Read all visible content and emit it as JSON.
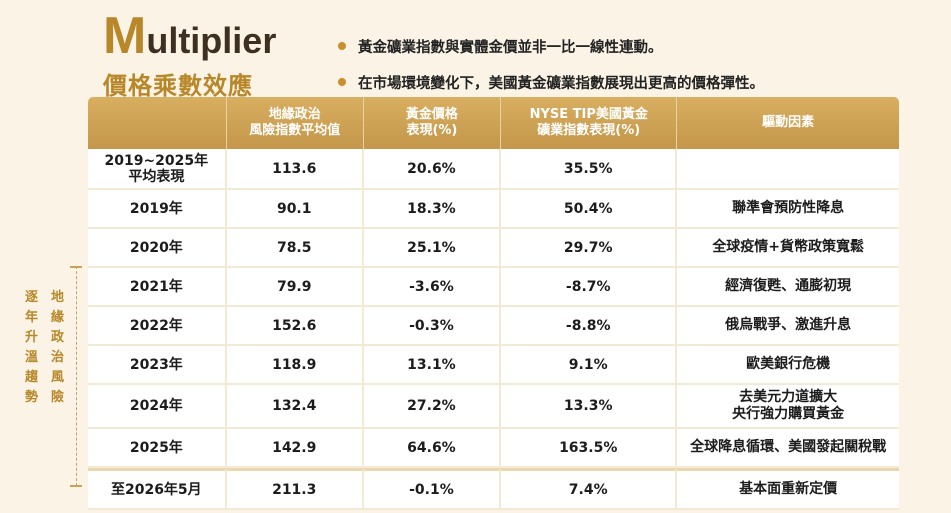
{
  "title": {
    "big_letter": "M",
    "rest": "ultiplier",
    "subtitle": "價格乘數效應"
  },
  "bullets": [
    "黃金礦業指數與實體金價並非一比一線性連動。",
    "在市場環境變化下，美國黃金礦業指數展現出更高的價格彈性。"
  ],
  "side_label": {
    "col1": [
      "逐",
      "年",
      "升",
      "溫",
      "趨",
      "勢"
    ],
    "col2": [
      "地",
      "緣",
      "政",
      "治",
      "風",
      "險"
    ]
  },
  "table": {
    "headers": [
      "",
      "地緣政治\n風險指數平均值",
      "黃金價格\n表現(%)",
      "NYSE TIP美國黃金\n礦業指數表現(%)",
      "驅動因素"
    ],
    "rows": [
      [
        "2019~2025年\n平均表現",
        "113.6",
        "20.6%",
        "35.5%",
        ""
      ],
      [
        "2019年",
        "90.1",
        "18.3%",
        "50.4%",
        "聯準會預防性降息"
      ],
      [
        "2020年",
        "78.5",
        "25.1%",
        "29.7%",
        "全球疫情+貨幣政策寬鬆"
      ],
      [
        "2021年",
        "79.9",
        "-3.6%",
        "-8.7%",
        "經濟復甦、通膨初現"
      ],
      [
        "2022年",
        "152.6",
        "-0.3%",
        "-8.8%",
        "俄烏戰爭、激進升息"
      ],
      [
        "2023年",
        "118.9",
        "13.1%",
        "9.1%",
        "歐美銀行危機"
      ],
      [
        "2024年",
        "132.4",
        "27.2%",
        "13.3%",
        "去美元力道擴大\n央行強力購買黃金"
      ],
      [
        "2025年",
        "142.9",
        "64.6%",
        "163.5%",
        "全球降息循環、美國發起關稅戰"
      ],
      [
        "至2026年5月",
        "211.3",
        "-0.1%",
        "7.4%",
        "基本面重新定價"
      ]
    ]
  },
  "colors": {
    "accent_gold": "#b8872a",
    "header_gold": "#c4974a",
    "background": "#fbf4e6"
  }
}
